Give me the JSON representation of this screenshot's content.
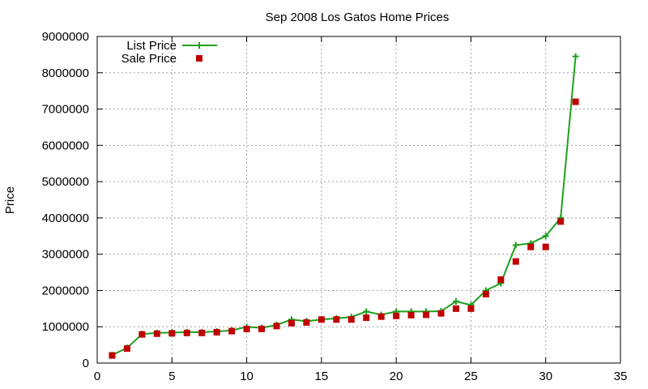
{
  "chart_data": {
    "type": "line",
    "title": "Sep 2008 Los Gatos Home Prices",
    "xlabel": "",
    "ylabel": "Price",
    "xlim": [
      0,
      35
    ],
    "ylim": [
      0,
      9000000
    ],
    "x_ticks": [
      0,
      5,
      10,
      15,
      20,
      25,
      30,
      35
    ],
    "y_ticks": [
      0,
      1000000,
      2000000,
      3000000,
      4000000,
      5000000,
      6000000,
      7000000,
      8000000,
      9000000
    ],
    "grid": true,
    "legend_position": "top-left",
    "x": [
      1,
      2,
      3,
      4,
      5,
      6,
      7,
      8,
      9,
      10,
      11,
      12,
      13,
      14,
      15,
      16,
      17,
      18,
      19,
      20,
      21,
      22,
      23,
      24,
      25,
      26,
      27,
      28,
      29,
      30,
      31,
      32
    ],
    "series": [
      {
        "name": "List Price",
        "style": "line+points",
        "marker": "plus",
        "color": "#1ea01e",
        "values": [
          220000,
          420000,
          800000,
          830000,
          840000,
          850000,
          850000,
          870000,
          900000,
          1000000,
          970000,
          1050000,
          1200000,
          1150000,
          1200000,
          1230000,
          1270000,
          1420000,
          1330000,
          1420000,
          1420000,
          1420000,
          1430000,
          1700000,
          1600000,
          2000000,
          2200000,
          3250000,
          3300000,
          3500000,
          4000000,
          8450000
        ]
      },
      {
        "name": "Sale Price",
        "style": "points",
        "marker": "square",
        "color": "#c00000",
        "values": [
          210000,
          400000,
          790000,
          810000,
          820000,
          830000,
          830000,
          850000,
          880000,
          940000,
          940000,
          1020000,
          1100000,
          1120000,
          1200000,
          1200000,
          1200000,
          1250000,
          1280000,
          1300000,
          1320000,
          1330000,
          1370000,
          1500000,
          1500000,
          1900000,
          2300000,
          2800000,
          3200000,
          3200000,
          3900000,
          7200000
        ]
      }
    ]
  }
}
